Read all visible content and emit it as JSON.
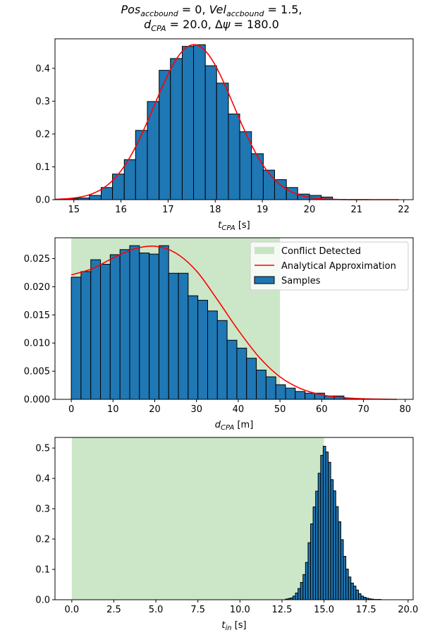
{
  "figure": {
    "title_line1": "Pos_accbound = 0, Vel_accbound = 1.5,",
    "title_line2": "d_CPA = 20.0, Δψ = 180.0"
  },
  "colors": {
    "bar_fill": "#1f77b4",
    "bar_edge": "#000000",
    "curve": "#ff0000",
    "conflict_region": "#a1d39b",
    "axes": "#000000"
  },
  "chart_data": [
    {
      "type": "bar",
      "name": "tcpa_histogram",
      "xlabel": "t_CPA [s]",
      "xlim": [
        14.6,
        22.2
      ],
      "ylim": [
        0,
        0.49
      ],
      "xticks": [
        15,
        16,
        17,
        18,
        19,
        20,
        21,
        22
      ],
      "yticks": [
        0.0,
        0.1,
        0.2,
        0.3,
        0.4
      ],
      "ytick_labels": [
        "0.0",
        "0.1",
        "0.2",
        "0.3",
        "0.4"
      ],
      "bin_edges": [
        14.84,
        15.08,
        15.33,
        15.58,
        15.82,
        16.07,
        16.31,
        16.56,
        16.81,
        17.05,
        17.3,
        17.54,
        17.79,
        18.03,
        18.28,
        18.52,
        18.77,
        19.02,
        19.26,
        19.51,
        19.75,
        20.0,
        20.25,
        20.49
      ],
      "values": [
        0.003,
        0.005,
        0.013,
        0.037,
        0.078,
        0.122,
        0.211,
        0.299,
        0.394,
        0.43,
        0.467,
        0.472,
        0.408,
        0.355,
        0.261,
        0.207,
        0.14,
        0.09,
        0.061,
        0.037,
        0.017,
        0.013,
        0.008
      ],
      "curve": {
        "kind": "normal",
        "name": "Analytical Approximation",
        "mean": 17.55,
        "std": 0.845,
        "x_range": [
          14.6,
          21.9
        ]
      }
    },
    {
      "type": "bar",
      "name": "dcpa_histogram",
      "xlabel": "d_CPA [m]",
      "xlim": [
        -3.9,
        81.9
      ],
      "ylim": [
        0,
        0.0287
      ],
      "xticks": [
        0,
        10,
        20,
        30,
        40,
        50,
        60,
        70,
        80
      ],
      "yticks": [
        0.0,
        0.005,
        0.01,
        0.015,
        0.02,
        0.025
      ],
      "ytick_labels": [
        "0.000",
        "0.005",
        "0.010",
        "0.015",
        "0.020",
        "0.025"
      ],
      "shaded_region": {
        "name": "Conflict Detected",
        "x_range": [
          0,
          50
        ]
      },
      "bin_edges": [
        0.0,
        2.33,
        4.67,
        7.0,
        9.33,
        11.67,
        14.0,
        16.33,
        18.67,
        21.0,
        23.33,
        25.67,
        28.0,
        30.33,
        32.67,
        35.0,
        37.33,
        39.67,
        42.0,
        44.33,
        46.67,
        49.0,
        51.33,
        53.67,
        56.0,
        58.33,
        60.67,
        63.0,
        65.33,
        67.67
      ],
      "values": [
        0.0217,
        0.0227,
        0.0248,
        0.024,
        0.0257,
        0.0266,
        0.0273,
        0.026,
        0.0258,
        0.0273,
        0.0224,
        0.0224,
        0.0184,
        0.0176,
        0.0157,
        0.014,
        0.0105,
        0.0091,
        0.0073,
        0.0052,
        0.004,
        0.0026,
        0.002,
        0.0014,
        0.0011,
        0.0011,
        0.0006,
        0.0006,
        0.0002
      ],
      "curve": {
        "kind": "halfnormal_like",
        "name": "Analytical Approximation",
        "x_range": [
          0,
          78
        ],
        "points": [
          [
            0,
            0.0221
          ],
          [
            5,
            0.0232
          ],
          [
            10,
            0.0251
          ],
          [
            15,
            0.0267
          ],
          [
            20,
            0.0272
          ],
          [
            25,
            0.026
          ],
          [
            30,
            0.0228
          ],
          [
            35,
            0.0177
          ],
          [
            40,
            0.0123
          ],
          [
            45,
            0.0075
          ],
          [
            50,
            0.004
          ],
          [
            55,
            0.0019
          ],
          [
            60,
            0.0008
          ],
          [
            65,
            0.0003
          ],
          [
            70,
            0.0001
          ],
          [
            78,
            0.0
          ]
        ]
      },
      "legend": {
        "placement": "top-right",
        "entries": [
          "Conflict Detected",
          "Analytical Approximation",
          "Samples"
        ]
      }
    },
    {
      "type": "bar",
      "name": "tin_histogram",
      "xlabel": "t_in [s]",
      "xlim": [
        -1.0,
        20.3
      ],
      "ylim": [
        0,
        0.535
      ],
      "xticks": [
        0.0,
        2.5,
        5.0,
        7.5,
        10.0,
        12.5,
        15.0,
        17.5,
        20.0
      ],
      "xtick_labels": [
        "0.0",
        "2.5",
        "5.0",
        "7.5",
        "10.0",
        "12.5",
        "15.0",
        "17.5",
        "20.0"
      ],
      "yticks": [
        0.0,
        0.1,
        0.2,
        0.3,
        0.4,
        0.5
      ],
      "ytick_labels": [
        "0.0",
        "0.1",
        "0.2",
        "0.3",
        "0.4",
        "0.5"
      ],
      "shaded_region": {
        "name": "Conflict Detected",
        "x_range": [
          0,
          15
        ]
      },
      "bin_edges": [
        12.7,
        12.85,
        13.0,
        13.15,
        13.3,
        13.45,
        13.6,
        13.75,
        13.9,
        14.05,
        14.2,
        14.35,
        14.5,
        14.65,
        14.8,
        14.95,
        15.1,
        15.25,
        15.4,
        15.55,
        15.7,
        15.85,
        16.0,
        16.15,
        16.3,
        16.45,
        16.6,
        16.75,
        16.9,
        17.05,
        17.2,
        17.35,
        17.5,
        17.65,
        17.8,
        17.95,
        18.1,
        18.25,
        18.4
      ],
      "values": [
        0.002,
        0.004,
        0.006,
        0.012,
        0.022,
        0.037,
        0.057,
        0.083,
        0.123,
        0.188,
        0.25,
        0.306,
        0.358,
        0.417,
        0.476,
        0.506,
        0.487,
        0.453,
        0.396,
        0.359,
        0.307,
        0.257,
        0.198,
        0.143,
        0.101,
        0.075,
        0.055,
        0.045,
        0.032,
        0.02,
        0.012,
        0.008,
        0.005,
        0.003,
        0.002,
        0.001,
        0.001,
        0.001
      ]
    }
  ]
}
